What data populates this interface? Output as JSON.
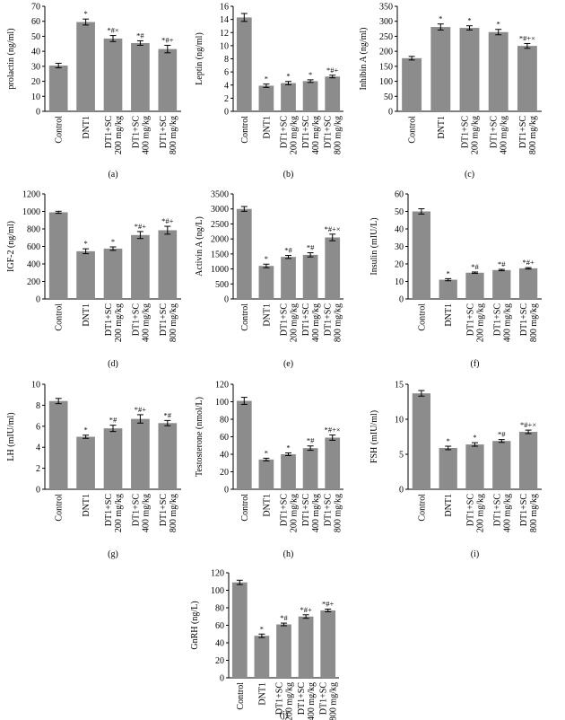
{
  "colors": {
    "bar": "#8c8c8c",
    "axis": "#000000",
    "error_bar": "#000000"
  },
  "categories": [
    "Control",
    "DNT1",
    "DT1+SC|200 mg/kg",
    "DT1+SC|400 mg/kg",
    "DT1+SC|800 mg/kg"
  ],
  "chart_data": [
    {
      "type": "bar",
      "label": "(a)",
      "ylabel": "prolactin (ng/ml)",
      "ylim": [
        0,
        70
      ],
      "ticks": [
        0,
        10,
        20,
        30,
        40,
        50,
        60,
        70
      ],
      "values": [
        30.5,
        59.5,
        48.5,
        45.5,
        41.5
      ],
      "errors": [
        1.5,
        2,
        2,
        1.5,
        2.5
      ],
      "annotations": [
        "",
        "*",
        "*#×",
        "*#",
        "*#+"
      ]
    },
    {
      "type": "bar",
      "label": "(b)",
      "ylabel": "Leptin (ng/ml)",
      "ylim": [
        0,
        16
      ],
      "ticks": [
        0,
        2,
        4,
        6,
        8,
        10,
        12,
        14,
        16
      ],
      "values": [
        14.3,
        3.9,
        4.3,
        4.6,
        5.3
      ],
      "errors": [
        0.6,
        0.25,
        0.25,
        0.2,
        0.2
      ],
      "annotations": [
        "",
        "*",
        "*",
        "*",
        "*#+"
      ]
    },
    {
      "type": "bar",
      "label": "(c)",
      "ylabel": "Inhibin A (ng/ml)",
      "ylim": [
        0,
        350
      ],
      "ticks": [
        0,
        50,
        100,
        150,
        200,
        250,
        300,
        350
      ],
      "values": [
        177,
        281,
        278,
        264,
        218
      ],
      "errors": [
        6,
        10,
        7,
        9,
        8
      ],
      "annotations": [
        "",
        "*",
        "*",
        "*",
        "*#+×"
      ]
    },
    {
      "type": "bar",
      "label": "(d)",
      "ylabel": "IGF-2 (ng/ml)",
      "ylim": [
        0,
        1200
      ],
      "ticks": [
        0,
        200,
        400,
        600,
        800,
        1000,
        1200
      ],
      "values": [
        990,
        545,
        575,
        730,
        785
      ],
      "errors": [
        12,
        28,
        20,
        40,
        45
      ],
      "annotations": [
        "",
        "*",
        "*",
        "*#+",
        "*#+"
      ]
    },
    {
      "type": "bar",
      "label": "(e)",
      "ylabel": "Activin A (ng/L)",
      "ylim": [
        0,
        3500
      ],
      "ticks": [
        0,
        500,
        1000,
        1500,
        2000,
        2500,
        3000,
        3500
      ],
      "values": [
        3000,
        1100,
        1400,
        1470,
        2050
      ],
      "errors": [
        80,
        60,
        50,
        70,
        110
      ],
      "annotations": [
        "",
        "*",
        "*#",
        "*#",
        "*#+×"
      ]
    },
    {
      "type": "bar",
      "label": "(f)",
      "ylabel": "Insulin (mIU/L)",
      "ylim": [
        0,
        60
      ],
      "ticks": [
        0,
        10,
        20,
        30,
        40,
        50,
        60
      ],
      "values": [
        50,
        11,
        15,
        16.5,
        17.5
      ],
      "errors": [
        1.5,
        0.6,
        0.4,
        0.4,
        0.4
      ],
      "annotations": [
        "",
        "*",
        "*#",
        "*#",
        "*#+"
      ]
    },
    {
      "type": "bar",
      "label": "(g)",
      "ylabel": "LH (mIU/ml)",
      "ylim": [
        0,
        10
      ],
      "ticks": [
        0,
        2,
        4,
        6,
        8,
        10
      ],
      "values": [
        8.4,
        5.0,
        5.8,
        6.7,
        6.3
      ],
      "errors": [
        0.25,
        0.15,
        0.3,
        0.4,
        0.25
      ],
      "annotations": [
        "",
        "*",
        "*#",
        "*#+",
        "*#"
      ]
    },
    {
      "type": "bar",
      "label": "(h)",
      "ylabel": "Testosterone (nmol/L)",
      "ylim": [
        0,
        120
      ],
      "ticks": [
        0,
        20,
        40,
        60,
        80,
        100,
        120
      ],
      "values": [
        101,
        34,
        40,
        47,
        59
      ],
      "errors": [
        4,
        1.5,
        1.5,
        2.5,
        3
      ],
      "annotations": [
        "",
        "*",
        "*",
        "*#",
        "*#+×"
      ]
    },
    {
      "type": "bar",
      "label": "(i)",
      "ylabel": "FSH (mIU/ml)",
      "ylim": [
        0,
        15
      ],
      "ticks": [
        0,
        5,
        10,
        15
      ],
      "values": [
        13.7,
        5.9,
        6.4,
        6.9,
        8.2
      ],
      "errors": [
        0.4,
        0.25,
        0.25,
        0.2,
        0.25
      ],
      "annotations": [
        "",
        "*",
        "*",
        "*#",
        "*#+×"
      ]
    },
    {
      "type": "bar",
      "label": "(j)",
      "ylabel": "GnRH (ng/L)",
      "ylim": [
        0,
        120
      ],
      "ticks": [
        0,
        20,
        40,
        60,
        80,
        100,
        120
      ],
      "values": [
        109,
        48,
        61,
        70,
        77
      ],
      "errors": [
        2.5,
        2,
        1.5,
        2,
        1.5
      ],
      "annotations": [
        "",
        "*",
        "*#",
        "*#+",
        "*#+"
      ]
    }
  ]
}
